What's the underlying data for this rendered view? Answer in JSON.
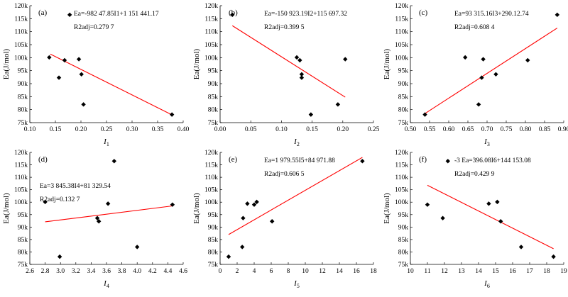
{
  "chart_data": [
    {
      "type": "scatter",
      "panel_label": "(a)",
      "xlabel": "I",
      "xlabel_sub": "1",
      "ylabel": "Ea(J/mol)",
      "xlim": [
        0.1,
        0.4
      ],
      "xticks": [
        0.1,
        0.15,
        0.2,
        0.25,
        0.3,
        0.35,
        0.4
      ],
      "xtick_labels": [
        "0.10",
        "0.15",
        "0.20",
        "0.25",
        "0.30",
        "0.35",
        "0.40"
      ],
      "ylim": [
        75000,
        120000
      ],
      "yticks": [
        75000,
        80000,
        85000,
        90000,
        95000,
        100000,
        105000,
        110000,
        115000,
        120000
      ],
      "ytick_labels": [
        "75k",
        "80k",
        "85k",
        "90k",
        "95k",
        "100k",
        "105k",
        "110k",
        "115k",
        "120k"
      ],
      "points": [
        [
          0.138,
          100100
        ],
        [
          0.157,
          92300
        ],
        [
          0.168,
          99000
        ],
        [
          0.178,
          116500
        ],
        [
          0.196,
          99400
        ],
        [
          0.201,
          93600
        ],
        [
          0.205,
          82000
        ],
        [
          0.378,
          78100
        ]
      ],
      "fit": {
        "x": [
          0.14,
          0.378
        ],
        "y": [
          101400,
          78000
        ],
        "color": "#ff0000"
      },
      "equation": "Ea=-982 47.85I1+1 151 441.17",
      "r2": "R2adj=0.279 7"
    },
    {
      "type": "scatter",
      "panel_label": "(b)",
      "xlabel": "I",
      "xlabel_sub": "2",
      "ylabel": "Ea(J/mol)",
      "xlim": [
        0.0,
        0.25
      ],
      "xticks": [
        0.0,
        0.05,
        0.1,
        0.15,
        0.2,
        0.25
      ],
      "xtick_labels": [
        "0.00",
        "0.05",
        "0.10",
        "0.15",
        "0.20",
        "0.25"
      ],
      "ylim": [
        75000,
        120000
      ],
      "yticks": [
        75000,
        80000,
        85000,
        90000,
        95000,
        100000,
        105000,
        110000,
        115000,
        120000
      ],
      "ytick_labels": [
        "75k",
        "80k",
        "85k",
        "90k",
        "95k",
        "100k",
        "105k",
        "110k",
        "115k",
        "120k"
      ],
      "points": [
        [
          0.02,
          116500
        ],
        [
          0.125,
          100100
        ],
        [
          0.13,
          99000
        ],
        [
          0.133,
          93600
        ],
        [
          0.133,
          92300
        ],
        [
          0.148,
          78100
        ],
        [
          0.192,
          82000
        ],
        [
          0.204,
          99400
        ]
      ],
      "fit": {
        "x": [
          0.02,
          0.204
        ],
        "y": [
          112300,
          84800
        ],
        "color": "#ff0000"
      },
      "equation": "Ea=-150 923.19I2+115 697.32",
      "r2": "R2adj=0.399 5"
    },
    {
      "type": "scatter",
      "panel_label": "(c)",
      "xlabel": "I",
      "xlabel_sub": "3",
      "ylabel": "Ea(J/mol)",
      "xlim": [
        0.5,
        0.9
      ],
      "xticks": [
        0.5,
        0.55,
        0.6,
        0.65,
        0.7,
        0.75,
        0.8,
        0.85,
        0.9
      ],
      "xtick_labels": [
        "0.50",
        "0.55",
        "0.60",
        "0.65",
        "0.70",
        "0.75",
        "0.80",
        "0.85",
        "0.90"
      ],
      "ylim": [
        75000,
        120000
      ],
      "yticks": [
        75000,
        80000,
        85000,
        90000,
        95000,
        100000,
        105000,
        110000,
        115000,
        120000
      ],
      "ytick_labels": [
        "75k",
        "80k",
        "85k",
        "90k",
        "95k",
        "100k",
        "105k",
        "110k",
        "115k",
        "120k"
      ],
      "points": [
        [
          0.538,
          78100
        ],
        [
          0.643,
          100100
        ],
        [
          0.678,
          82000
        ],
        [
          0.686,
          92300
        ],
        [
          0.69,
          99400
        ],
        [
          0.723,
          93600
        ],
        [
          0.806,
          99000
        ],
        [
          0.883,
          116500
        ]
      ],
      "fit": {
        "x": [
          0.538,
          0.883
        ],
        "y": [
          78500,
          111400
        ],
        "color": "#ff0000"
      },
      "equation": "Ea=93 315.16I3+290.12.74",
      "r2": "R2adj=0.608 4"
    },
    {
      "type": "scatter",
      "panel_label": "(d)",
      "xlabel": "I",
      "xlabel_sub": "4",
      "ylabel": "Ea(J/mol)",
      "xlim": [
        2.6,
        4.6
      ],
      "xticks": [
        2.6,
        2.8,
        3.0,
        3.2,
        3.4,
        3.6,
        3.8,
        4.0,
        4.2,
        4.4,
        4.6
      ],
      "xtick_labels": [
        "2.6",
        "2.8",
        "3.0",
        "3.2",
        "3.4",
        "3.6",
        "3.8",
        "4.0",
        "4.2",
        "4.4",
        "4.6"
      ],
      "ylim": [
        75000,
        120000
      ],
      "yticks": [
        75000,
        80000,
        85000,
        90000,
        95000,
        100000,
        105000,
        110000,
        115000,
        120000
      ],
      "ytick_labels": [
        "75k",
        "80k",
        "85k",
        "90k",
        "95k",
        "100k",
        "105k",
        "110k",
        "115k",
        "120k"
      ],
      "points": [
        [
          2.8,
          100100
        ],
        [
          2.99,
          78100
        ],
        [
          3.48,
          93600
        ],
        [
          3.5,
          92300
        ],
        [
          3.62,
          99400
        ],
        [
          3.7,
          116500
        ],
        [
          4.0,
          82000
        ],
        [
          4.46,
          99000
        ]
      ],
      "fit": {
        "x": [
          2.8,
          4.46
        ],
        "y": [
          92100,
          98500
        ],
        "color": "#ff0000"
      },
      "equation": "Ea=3 845.38I4+81 329.54",
      "r2": "R2adj=0.132 7"
    },
    {
      "type": "scatter",
      "panel_label": "(e)",
      "xlabel": "I",
      "xlabel_sub": "5",
      "ylabel": "Ea(J/mol)",
      "xlim": [
        0,
        18
      ],
      "xticks": [
        0,
        2,
        4,
        6,
        8,
        10,
        12,
        14,
        16,
        18
      ],
      "xtick_labels": [
        "0",
        "2",
        "4",
        "6",
        "8",
        "10",
        "12",
        "14",
        "16",
        "18"
      ],
      "ylim": [
        75000,
        120000
      ],
      "yticks": [
        75000,
        80000,
        85000,
        90000,
        95000,
        100000,
        105000,
        110000,
        115000,
        120000
      ],
      "ytick_labels": [
        "75k",
        "80k",
        "85k",
        "90k",
        "95k",
        "100k",
        "105k",
        "110k",
        "115k",
        "120k"
      ],
      "points": [
        [
          1.0,
          78100
        ],
        [
          2.6,
          82000
        ],
        [
          2.7,
          93600
        ],
        [
          3.2,
          99400
        ],
        [
          4.0,
          99000
        ],
        [
          4.3,
          100100
        ],
        [
          6.1,
          92300
        ],
        [
          16.7,
          116500
        ]
      ],
      "fit": {
        "x": [
          1.0,
          16.7
        ],
        "y": [
          87000,
          118000
        ],
        "color": "#ff0000"
      },
      "equation": "Ea=1 979.55I5+84 971.88",
      "r2": "R2adj=0.606 5"
    },
    {
      "type": "scatter",
      "panel_label": "(f)",
      "xlabel": "I",
      "xlabel_sub": "6",
      "ylabel": "Ea(J/mol)",
      "xlim": [
        10,
        19
      ],
      "xticks": [
        10,
        11,
        12,
        13,
        14,
        15,
        16,
        17,
        18,
        19
      ],
      "xtick_labels": [
        "10",
        "11",
        "12",
        "13",
        "14",
        "15",
        "16",
        "17",
        "18",
        "19"
      ],
      "ylim": [
        75000,
        120000
      ],
      "yticks": [
        75000,
        80000,
        85000,
        90000,
        95000,
        100000,
        105000,
        110000,
        115000,
        120000
      ],
      "ytick_labels": [
        "75k",
        "80k",
        "85k",
        "90k",
        "95k",
        "100k",
        "105k",
        "110k",
        "115k",
        "120k"
      ],
      "points": [
        [
          11.0,
          99000
        ],
        [
          11.9,
          93600
        ],
        [
          12.2,
          116500
        ],
        [
          14.6,
          99400
        ],
        [
          15.1,
          100100
        ],
        [
          15.3,
          92300
        ],
        [
          16.5,
          82000
        ],
        [
          18.4,
          78100
        ]
      ],
      "fit": {
        "x": [
          11.0,
          18.4
        ],
        "y": [
          106800,
          81300
        ],
        "color": "#ff0000"
      },
      "equation": "-3 Ea=396.08I6+144 153.08",
      "r2": "R2adj=0.429 9"
    }
  ]
}
